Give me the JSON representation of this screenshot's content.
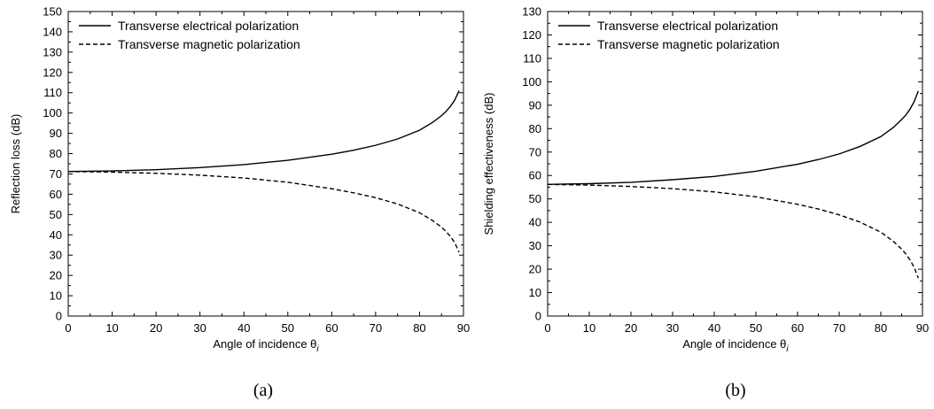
{
  "chart_data": [
    {
      "type": "line",
      "caption": "(a)",
      "xlabel": "Angle of incidence θ",
      "xlabel_sub": "i",
      "ylabel": "Reflection loss (dB)",
      "xlim": [
        0,
        90
      ],
      "ylim": [
        0,
        150
      ],
      "xticks": [
        0,
        10,
        20,
        30,
        40,
        50,
        60,
        70,
        80,
        90
      ],
      "yticks": [
        0,
        10,
        20,
        30,
        40,
        50,
        60,
        70,
        80,
        90,
        100,
        110,
        120,
        130,
        140,
        150
      ],
      "grid": false,
      "legend_position": "top-left",
      "series": [
        {
          "name": "Transverse electrical polarization",
          "style": "solid",
          "x": [
            0,
            10,
            20,
            30,
            40,
            50,
            60,
            65,
            70,
            75,
            80,
            83,
            85,
            86,
            87,
            88,
            89
          ],
          "y": [
            71.2,
            71.5,
            72.1,
            73.1,
            74.6,
            76.7,
            79.7,
            81.7,
            84.1,
            87.2,
            91.5,
            95.4,
            98.7,
            100.7,
            103.2,
            106.3,
            111.0
          ]
        },
        {
          "name": "Transverse magnetic polarization",
          "style": "dashed",
          "x": [
            0,
            10,
            20,
            30,
            40,
            50,
            60,
            65,
            70,
            75,
            80,
            83,
            85,
            86,
            87,
            88,
            89
          ],
          "y": [
            71.2,
            70.9,
            70.3,
            69.4,
            68.0,
            65.9,
            62.7,
            60.7,
            58.3,
            55.2,
            50.9,
            47.0,
            43.8,
            41.7,
            39.3,
            36.2,
            31.4
          ]
        }
      ]
    },
    {
      "type": "line",
      "caption": "(b)",
      "xlabel": "Angle of incidence θ",
      "xlabel_sub": "i",
      "ylabel": "Shielding effectiveness (dB)",
      "xlim": [
        0,
        90
      ],
      "ylim": [
        0,
        130
      ],
      "xticks": [
        0,
        10,
        20,
        30,
        40,
        50,
        60,
        70,
        80,
        90
      ],
      "yticks": [
        0,
        10,
        20,
        30,
        40,
        50,
        60,
        70,
        80,
        90,
        100,
        110,
        120,
        130
      ],
      "grid": false,
      "legend_position": "top-left",
      "series": [
        {
          "name": "Transverse electrical polarization",
          "style": "solid",
          "x": [
            0,
            10,
            20,
            30,
            40,
            50,
            60,
            65,
            70,
            75,
            80,
            83,
            85,
            86,
            87,
            88,
            89
          ],
          "y": [
            56.2,
            56.5,
            57.1,
            58.2,
            59.6,
            61.8,
            64.8,
            66.8,
            69.2,
            72.4,
            76.6,
            80.5,
            83.9,
            85.8,
            88.3,
            91.5,
            96.1
          ]
        },
        {
          "name": "Transverse magnetic polarization",
          "style": "dashed",
          "x": [
            0,
            10,
            20,
            30,
            40,
            50,
            60,
            65,
            70,
            75,
            80,
            83,
            85,
            86,
            87,
            88,
            89
          ],
          "y": [
            56.2,
            55.9,
            55.3,
            54.4,
            53.0,
            50.9,
            47.7,
            45.7,
            43.2,
            40.1,
            35.8,
            31.9,
            28.6,
            26.5,
            24.0,
            20.8,
            16.2
          ]
        }
      ]
    }
  ]
}
